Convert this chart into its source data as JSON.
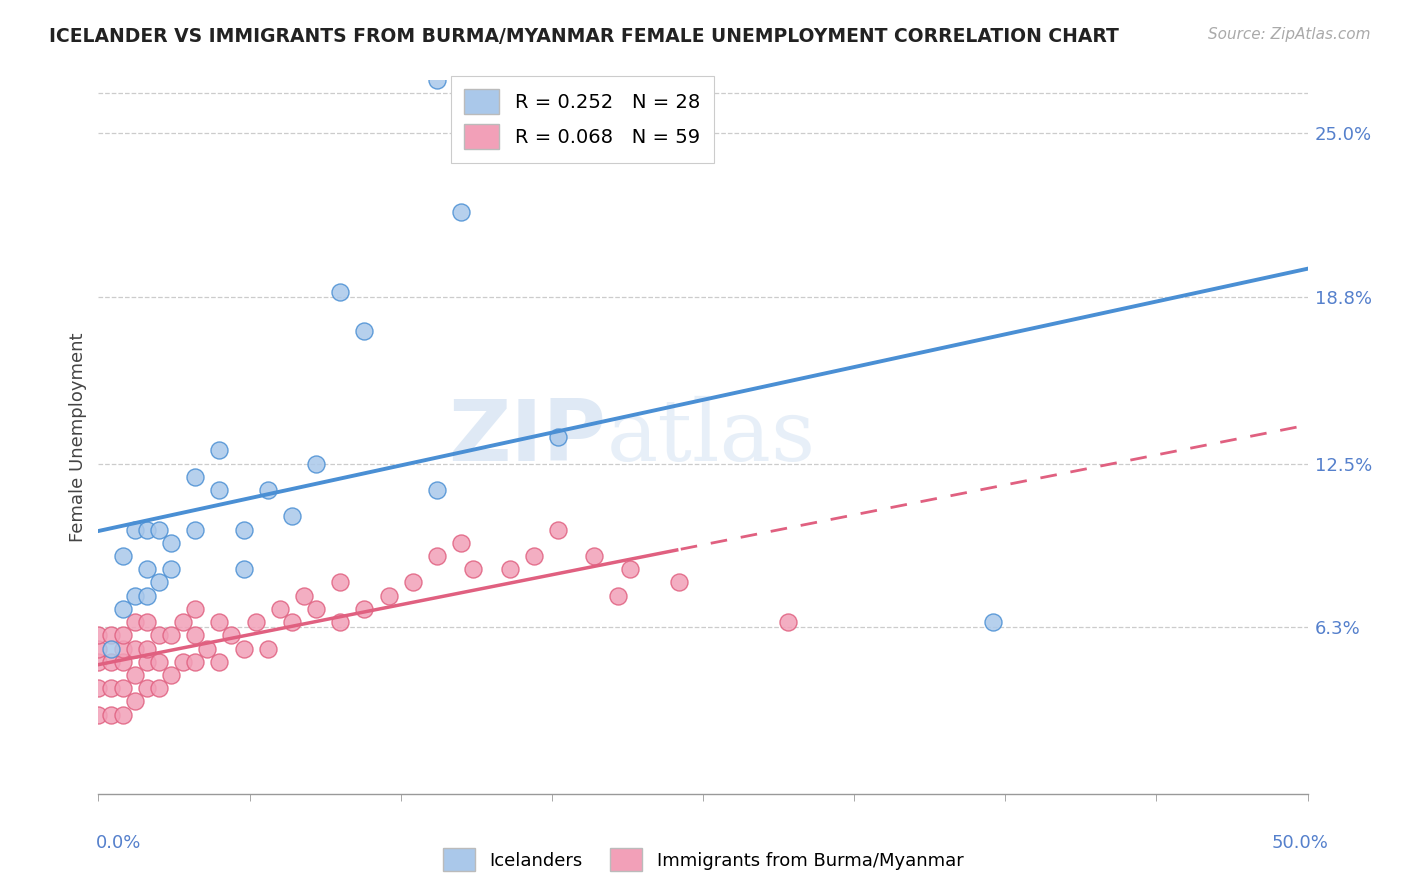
{
  "title": "ICELANDER VS IMMIGRANTS FROM BURMA/MYANMAR FEMALE UNEMPLOYMENT CORRELATION CHART",
  "source": "Source: ZipAtlas.com",
  "ylabel": "Female Unemployment",
  "legend_1_label": "Icelanders",
  "legend_2_label": "Immigrants from Burma/Myanmar",
  "r1": 0.252,
  "n1": 28,
  "r2": 0.068,
  "n2": 59,
  "color_icelanders": "#aac8ea",
  "color_burma": "#f2a0b8",
  "line_color_icelanders": "#4a8fd4",
  "line_color_burma": "#e06080",
  "xmin": 0.0,
  "xmax": 0.5,
  "ymin": 0.0,
  "ymax": 0.27,
  "right_yticks": [
    0.063,
    0.125,
    0.188,
    0.25
  ],
  "right_ytick_labels": [
    "6.3%",
    "12.5%",
    "18.8%",
    "25.0%"
  ],
  "watermark_zip": "ZIP",
  "watermark_atlas": "atlas",
  "icelanders_x": [
    0.005,
    0.01,
    0.01,
    0.015,
    0.015,
    0.02,
    0.02,
    0.02,
    0.025,
    0.025,
    0.03,
    0.03,
    0.04,
    0.04,
    0.05,
    0.05,
    0.06,
    0.06,
    0.07,
    0.08,
    0.09,
    0.1,
    0.11,
    0.14,
    0.15,
    0.19,
    0.37,
    0.14
  ],
  "icelanders_y": [
    0.055,
    0.07,
    0.09,
    0.075,
    0.1,
    0.075,
    0.1,
    0.085,
    0.08,
    0.1,
    0.085,
    0.095,
    0.1,
    0.12,
    0.115,
    0.13,
    0.085,
    0.1,
    0.115,
    0.105,
    0.125,
    0.19,
    0.175,
    0.115,
    0.22,
    0.135,
    0.065,
    0.27
  ],
  "burma_x": [
    0.0,
    0.0,
    0.0,
    0.0,
    0.0,
    0.005,
    0.005,
    0.005,
    0.005,
    0.01,
    0.01,
    0.01,
    0.01,
    0.01,
    0.015,
    0.015,
    0.015,
    0.015,
    0.02,
    0.02,
    0.02,
    0.02,
    0.025,
    0.025,
    0.025,
    0.03,
    0.03,
    0.035,
    0.035,
    0.04,
    0.04,
    0.04,
    0.045,
    0.05,
    0.05,
    0.055,
    0.06,
    0.065,
    0.07,
    0.075,
    0.08,
    0.085,
    0.09,
    0.1,
    0.1,
    0.11,
    0.12,
    0.13,
    0.14,
    0.15,
    0.155,
    0.17,
    0.18,
    0.19,
    0.205,
    0.215,
    0.22,
    0.24,
    0.285
  ],
  "burma_y": [
    0.03,
    0.04,
    0.05,
    0.055,
    0.06,
    0.03,
    0.04,
    0.05,
    0.06,
    0.03,
    0.04,
    0.05,
    0.055,
    0.06,
    0.035,
    0.045,
    0.055,
    0.065,
    0.04,
    0.05,
    0.055,
    0.065,
    0.04,
    0.05,
    0.06,
    0.045,
    0.06,
    0.05,
    0.065,
    0.05,
    0.06,
    0.07,
    0.055,
    0.05,
    0.065,
    0.06,
    0.055,
    0.065,
    0.055,
    0.07,
    0.065,
    0.075,
    0.07,
    0.065,
    0.08,
    0.07,
    0.075,
    0.08,
    0.09,
    0.095,
    0.085,
    0.085,
    0.09,
    0.1,
    0.09,
    0.075,
    0.085,
    0.08,
    0.065
  ]
}
